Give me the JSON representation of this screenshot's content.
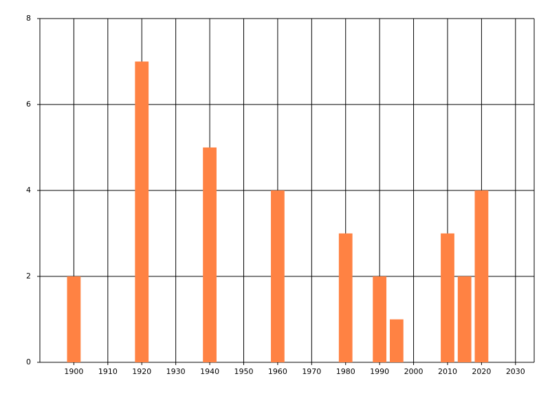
{
  "chart_data": {
    "type": "bar",
    "x": [
      1900,
      1920,
      1940,
      1960,
      1980,
      1990,
      1995,
      2010,
      2015,
      2020
    ],
    "values": [
      2,
      7,
      5,
      4,
      3,
      2,
      1,
      3,
      2,
      4
    ],
    "color": "#ff8243",
    "xlim": [
      1890,
      2035.5
    ],
    "xticks": [
      1900,
      1910,
      1920,
      1930,
      1940,
      1950,
      1960,
      1970,
      1980,
      1990,
      2000,
      2010,
      2020,
      2030
    ],
    "ylim": [
      0,
      8
    ],
    "yticks": [
      0,
      2,
      4,
      6,
      8
    ],
    "grid": true
  }
}
